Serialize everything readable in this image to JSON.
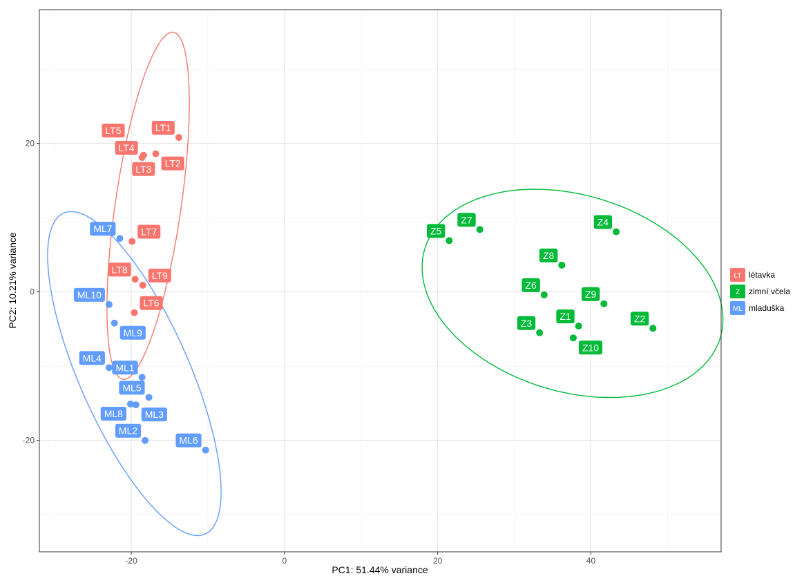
{
  "chart_data": {
    "type": "scatter",
    "xlabel": "PC1: 51.44% variance",
    "ylabel": "PC2: 10.21% variance",
    "xlim": [
      -32,
      57
    ],
    "ylim": [
      -35,
      38
    ],
    "x_ticks": [
      -20,
      0,
      20,
      40
    ],
    "y_ticks": [
      -20,
      0,
      20
    ],
    "x_tick_labels": [
      "-20",
      "0",
      "20",
      "40"
    ],
    "y_tick_labels": [
      "-20",
      "0",
      "20"
    ],
    "grid": true,
    "legend_position": "right",
    "series": [
      {
        "name": "létavka",
        "key": "LT",
        "color": "#F8766D",
        "ellipse": {
          "cx": -17.8,
          "cy": 11.6,
          "rx": 23.6,
          "ry": 4.3,
          "angle_deg": 82
        },
        "points": [
          {
            "label": "LT1",
            "x": -13.8,
            "y": 20.8
          },
          {
            "label": "LT2",
            "x": -16.8,
            "y": 18.6
          },
          {
            "label": "LT3",
            "x": -18.4,
            "y": 18.4
          },
          {
            "label": "LT4",
            "x": -18.6,
            "y": 18.1
          },
          {
            "label": "LT5",
            "x": -19.6,
            "y": 19.5
          },
          {
            "label": "LT7",
            "x": -19.9,
            "y": 6.8
          },
          {
            "label": "LT8",
            "x": -19.5,
            "y": 1.7
          },
          {
            "label": "LT9",
            "x": -18.5,
            "y": 0.9
          },
          {
            "label": "LT6",
            "x": -19.6,
            "y": -2.8
          }
        ]
      },
      {
        "name": "zimní včela",
        "key": "Z",
        "color": "#00BA38",
        "ellipse": {
          "cx": 37.6,
          "cy": -0.2,
          "rx": 20.2,
          "ry": 13.2,
          "angle_deg": -18
        },
        "points": [
          {
            "label": "Z7",
            "x": 25.5,
            "y": 8.4
          },
          {
            "label": "Z5",
            "x": 21.5,
            "y": 6.9
          },
          {
            "label": "Z4",
            "x": 43.3,
            "y": 8.1
          },
          {
            "label": "Z8",
            "x": 36.2,
            "y": 3.6
          },
          {
            "label": "Z6",
            "x": 33.9,
            "y": -0.4
          },
          {
            "label": "Z9",
            "x": 41.7,
            "y": -1.6
          },
          {
            "label": "Z1",
            "x": 38.4,
            "y": -4.6
          },
          {
            "label": "Z3",
            "x": 33.3,
            "y": -5.5
          },
          {
            "label": "Z10",
            "x": 37.7,
            "y": -6.2
          },
          {
            "label": "Z2",
            "x": 48.1,
            "y": -4.9
          }
        ]
      },
      {
        "name": "mladuška",
        "key": "ML",
        "color": "#619CFF",
        "ellipse": {
          "cx": -19.6,
          "cy": -11.0,
          "rx": 23.5,
          "ry": 7.2,
          "angle_deg": -67
        },
        "points": [
          {
            "label": "ML7",
            "x": -21.5,
            "y": 7.2
          },
          {
            "label": "ML10",
            "x": -22.9,
            "y": -1.7
          },
          {
            "label": "ML9",
            "x": -22.2,
            "y": -4.2
          },
          {
            "label": "ML4",
            "x": -22.9,
            "y": -10.2
          },
          {
            "label": "ML1",
            "x": -18.6,
            "y": -11.5
          },
          {
            "label": "ML5",
            "x": -17.7,
            "y": -14.2
          },
          {
            "label": "ML8",
            "x": -20.1,
            "y": -15.1
          },
          {
            "label": "ML3",
            "x": -19.4,
            "y": -15.2
          },
          {
            "label": "ML2",
            "x": -18.2,
            "y": -20.0
          },
          {
            "label": "ML6",
            "x": -10.3,
            "y": -21.3
          }
        ]
      }
    ]
  }
}
